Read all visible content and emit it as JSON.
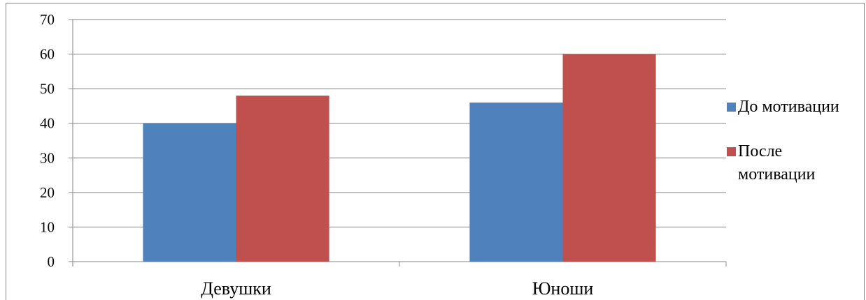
{
  "chart_data": {
    "type": "bar",
    "categories": [
      "Девушки",
      "Юноши"
    ],
    "series": [
      {
        "name": "До мотивации",
        "values": [
          40,
          46
        ],
        "color": "#4F81BD"
      },
      {
        "name": "После мотивации",
        "values": [
          48,
          60
        ],
        "color": "#C0504D"
      }
    ],
    "ylim": [
      0,
      70
    ],
    "yticks": [
      0,
      10,
      20,
      30,
      40,
      50,
      60,
      70
    ],
    "grid": true,
    "legend": "right",
    "legend_lines": [
      [
        "До мотивации"
      ],
      [
        "После",
        "мотивации"
      ]
    ]
  }
}
